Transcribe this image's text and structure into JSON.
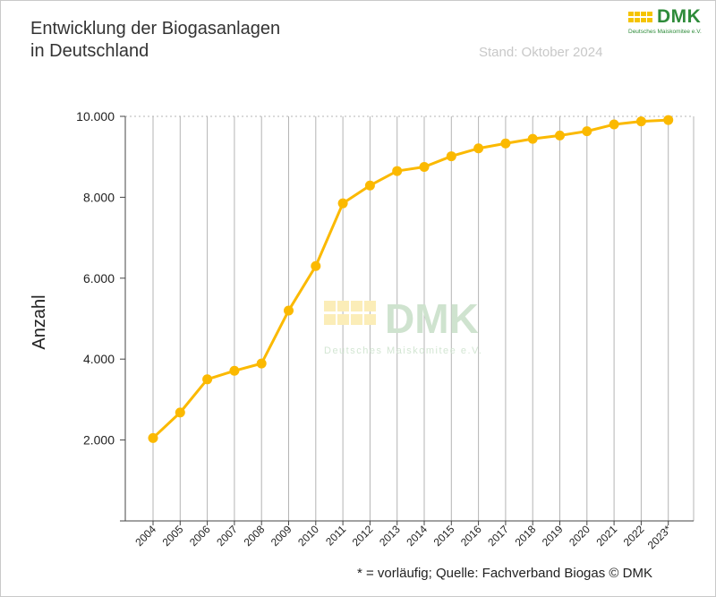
{
  "header": {
    "title": "Entwicklung der Biogasanlagen\nin Deutschland",
    "stand": "Stand: Oktober 2024"
  },
  "logo": {
    "text": "DMK",
    "subtitle": "Deutsches Maiskomitee e.V."
  },
  "watermark": {
    "text": "DMK",
    "subtitle": "Deutsches Maiskomitee e.V."
  },
  "footer": {
    "source": "* = vorläufig; Quelle: Fachverband Biogas © DMK"
  },
  "colors": {
    "line": "#fbb900",
    "brand_green": "#2e8b3a",
    "brand_yellow": "#f5c400",
    "grid": "#b4b4b4"
  },
  "chart_data": {
    "type": "line",
    "title": "Entwicklung der Biogasanlagen in Deutschland",
    "xlabel": "",
    "ylabel": "Anzahl",
    "categories": [
      "2004",
      "2005",
      "2006",
      "2007",
      "2008",
      "2009",
      "2010",
      "2011",
      "2012",
      "2013",
      "2014",
      "2015",
      "2016",
      "2017",
      "2018",
      "2019",
      "2020",
      "2021",
      "2022",
      "2023*"
    ],
    "series": [
      {
        "values": [
          2050,
          2680,
          3500,
          3711,
          3891,
          5200,
          6300,
          7850,
          8292,
          8649,
          8750,
          9014,
          9209,
          9331,
          9444,
          9527,
          9632,
          9800,
          9876,
          9910
        ]
      }
    ],
    "ylim": [
      0,
      10000
    ],
    "yticks": [
      2000,
      4000,
      6000,
      8000,
      10000
    ],
    "ytick_labels": [
      "2.000",
      "4.000",
      "6.000",
      "8.000",
      "10.000"
    ],
    "grid": true
  }
}
